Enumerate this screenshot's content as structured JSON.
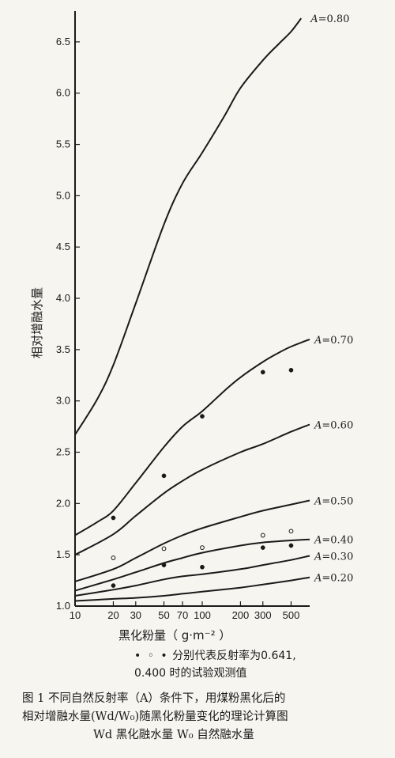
{
  "chart_data": {
    "type": "line",
    "title": "",
    "ylabel": "相对增融水量",
    "xlabel": "黑化粉量（g·m⁻²）",
    "xscale": "log",
    "xlim": [
      10,
      700
    ],
    "ylim": [
      1.0,
      6.8
    ],
    "x_ticks": [
      10,
      20,
      30,
      50,
      70,
      100,
      200,
      300,
      500
    ],
    "x_tick_labels": [
      "10",
      "20",
      "30",
      "50",
      "70",
      "100",
      "200",
      "300",
      "500"
    ],
    "y_ticks": [
      1.0,
      1.5,
      2.0,
      2.5,
      3.0,
      3.5,
      4.0,
      4.5,
      5.0,
      5.5,
      6.0,
      6.5
    ],
    "y_tick_labels": [
      "1.0",
      "1.5",
      "2.0",
      "2.5",
      "3.0",
      "3.5",
      "4.0",
      "4.5",
      "5.0",
      "5.5",
      "6.0",
      "6.5"
    ],
    "series": [
      {
        "name": "A=0.80",
        "x": [
          10,
          15,
          20,
          30,
          50,
          70,
          100,
          150,
          200,
          300,
          400,
          500,
          600
        ],
        "y": [
          2.67,
          3.02,
          3.35,
          3.95,
          4.72,
          5.12,
          5.42,
          5.78,
          6.05,
          6.32,
          6.48,
          6.6,
          6.73
        ]
      },
      {
        "name": "A=0.70",
        "x": [
          10,
          15,
          20,
          30,
          50,
          70,
          100,
          150,
          200,
          300,
          400,
          500,
          700
        ],
        "y": [
          1.69,
          1.82,
          1.93,
          2.2,
          2.55,
          2.75,
          2.9,
          3.1,
          3.23,
          3.38,
          3.47,
          3.53,
          3.6
        ]
      },
      {
        "name": "A=0.60",
        "x": [
          10,
          20,
          30,
          50,
          70,
          100,
          200,
          300,
          500,
          700
        ],
        "y": [
          1.5,
          1.7,
          1.88,
          2.1,
          2.22,
          2.33,
          2.5,
          2.58,
          2.7,
          2.77
        ]
      },
      {
        "name": "A=0.50",
        "x": [
          10,
          20,
          30,
          50,
          70,
          100,
          200,
          300,
          500,
          700
        ],
        "y": [
          1.24,
          1.36,
          1.47,
          1.61,
          1.69,
          1.76,
          1.87,
          1.93,
          1.99,
          2.03
        ]
      },
      {
        "name": "A=0.40",
        "x": [
          10,
          20,
          30,
          50,
          70,
          100,
          200,
          300,
          500,
          700
        ],
        "y": [
          1.15,
          1.26,
          1.33,
          1.42,
          1.47,
          1.52,
          1.59,
          1.62,
          1.64,
          1.65
        ]
      },
      {
        "name": "A=0.30",
        "x": [
          10,
          20,
          30,
          50,
          70,
          100,
          200,
          300,
          500,
          700
        ],
        "y": [
          1.1,
          1.16,
          1.2,
          1.26,
          1.29,
          1.31,
          1.36,
          1.4,
          1.45,
          1.49
        ]
      },
      {
        "name": "A=0.20",
        "x": [
          10,
          20,
          30,
          50,
          70,
          100,
          200,
          300,
          500,
          700
        ],
        "y": [
          1.05,
          1.07,
          1.08,
          1.1,
          1.12,
          1.14,
          1.18,
          1.21,
          1.25,
          1.28
        ]
      }
    ],
    "observations": [
      {
        "reflectance": "0.641",
        "marker": "filled",
        "points": [
          [
            20,
            1.86
          ],
          [
            50,
            2.27
          ],
          [
            100,
            2.85
          ],
          [
            300,
            3.28
          ],
          [
            500,
            3.3
          ]
        ]
      },
      {
        "reflectance": "0.641",
        "marker": "filled",
        "points": [
          [
            20,
            1.2
          ],
          [
            50,
            1.4
          ],
          [
            100,
            1.38
          ],
          [
            300,
            1.57
          ],
          [
            500,
            1.59
          ]
        ]
      },
      {
        "reflectance": "0.400",
        "marker": "open",
        "points": [
          [
            20,
            1.47
          ],
          [
            50,
            1.56
          ],
          [
            100,
            1.57
          ],
          [
            300,
            1.69
          ],
          [
            500,
            1.73
          ]
        ]
      }
    ],
    "grid": false
  },
  "axis": {
    "ylabel": "相对增融水量",
    "xlabel": "黑化粉量（ g·m⁻² ）"
  },
  "legend_note": {
    "symbols": "• ◦ •",
    "line1": "分别代表反射率为0.641,",
    "line2": "0.400 时的试验观测值"
  },
  "caption": {
    "line1": "图 1   不同自然反射率（A）条件下，用煤粉黑化后的",
    "line2": "相对增融水量(Wd/W₀)随黑化粉量变化的理论计算图",
    "line3": "Wd  黑化融水量    W₀ 自然融水量"
  },
  "colors": {
    "ink": "#1a1a1a",
    "paper": "#f7f5f0"
  }
}
